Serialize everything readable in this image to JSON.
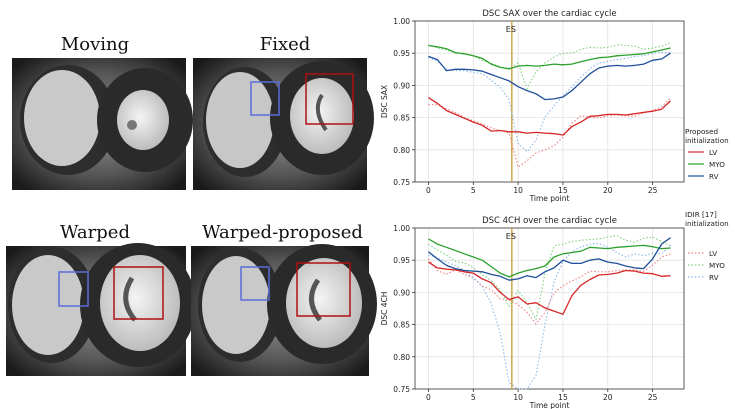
{
  "panels": {
    "moving": "Moving",
    "fixed": "Fixed",
    "warped": "Warped",
    "warped_proposed": "Warped-proposed"
  },
  "legend": {
    "proposed_title_line1": "Proposed",
    "proposed_title_line2": "initialization",
    "idir_title_line1": "IDIR [17]",
    "idir_title_line2": "initialization",
    "entries": [
      "LV",
      "MYO",
      "RV"
    ]
  },
  "colors": {
    "LV": "#d62728",
    "MYO": "#2ca02c",
    "RV": "#1f4e9a",
    "ES": "#c8a040",
    "roi_blue": "#5b6cd6",
    "roi_red": "#b01010"
  },
  "chart_data": [
    {
      "type": "line",
      "title": "DSC SAX over the cardiac cycle",
      "xlabel": "Time point",
      "ylabel": "DSC SAX",
      "xlim": [
        -1.5,
        28.5
      ],
      "ylim": [
        0.75,
        1.0
      ],
      "xticks": [
        0,
        5,
        10,
        15,
        20,
        25
      ],
      "yticks": [
        0.75,
        0.8,
        0.85,
        0.9,
        0.95,
        1.0
      ],
      "grid": true,
      "annotation": {
        "label": "ES",
        "x": 9.3
      },
      "x": [
        0,
        1,
        2,
        3,
        4,
        5,
        6,
        7,
        8,
        9,
        10,
        11,
        12,
        13,
        14,
        15,
        16,
        17,
        18,
        19,
        20,
        21,
        22,
        23,
        24,
        25,
        26,
        27
      ],
      "series": [
        {
          "name": "LV",
          "group": "Proposed initialization",
          "style": "solid",
          "values": [
            0.881,
            0.872,
            0.861,
            0.855,
            0.849,
            0.843,
            0.838,
            0.829,
            0.83,
            0.828,
            0.828,
            0.826,
            0.827,
            0.826,
            0.825,
            0.823,
            0.836,
            0.843,
            0.852,
            0.853,
            0.855,
            0.855,
            0.854,
            0.856,
            0.858,
            0.86,
            0.863,
            0.876
          ]
        },
        {
          "name": "MYO",
          "group": "Proposed initialization",
          "style": "solid",
          "values": [
            0.962,
            0.96,
            0.957,
            0.951,
            0.949,
            0.946,
            0.942,
            0.933,
            0.928,
            0.926,
            0.93,
            0.931,
            0.93,
            0.931,
            0.933,
            0.932,
            0.933,
            0.937,
            0.94,
            0.943,
            0.944,
            0.946,
            0.947,
            0.948,
            0.949,
            0.952,
            0.955,
            0.958
          ]
        },
        {
          "name": "RV",
          "group": "Proposed initialization",
          "style": "solid",
          "values": [
            0.945,
            0.94,
            0.923,
            0.925,
            0.925,
            0.924,
            0.922,
            0.917,
            0.912,
            0.907,
            0.898,
            0.892,
            0.887,
            0.878,
            0.879,
            0.882,
            0.892,
            0.905,
            0.918,
            0.927,
            0.93,
            0.931,
            0.93,
            0.931,
            0.933,
            0.939,
            0.941,
            0.95
          ]
        },
        {
          "name": "LV",
          "group": "IDIR [17] initialization",
          "style": "dotted",
          "values": [
            0.87,
            0.87,
            0.864,
            0.858,
            0.85,
            0.845,
            0.84,
            0.834,
            0.83,
            0.826,
            0.773,
            0.783,
            0.795,
            0.8,
            0.806,
            0.82,
            0.841,
            0.853,
            0.851,
            0.849,
            0.853,
            0.854,
            0.853,
            0.852,
            0.857,
            0.861,
            0.867,
            0.88
          ]
        },
        {
          "name": "MYO",
          "group": "IDIR [17] initialization",
          "style": "dotted",
          "values": [
            0.963,
            0.958,
            0.955,
            0.95,
            0.95,
            0.946,
            0.939,
            0.934,
            0.929,
            0.925,
            0.935,
            0.895,
            0.921,
            0.935,
            0.944,
            0.95,
            0.95,
            0.956,
            0.959,
            0.958,
            0.959,
            0.963,
            0.962,
            0.961,
            0.956,
            0.958,
            0.961,
            0.966
          ]
        },
        {
          "name": "RV",
          "group": "IDIR [17] initialization",
          "style": "dotted",
          "values": [
            0.943,
            0.938,
            0.925,
            0.923,
            0.923,
            0.92,
            0.918,
            0.908,
            0.897,
            0.878,
            0.81,
            0.797,
            0.815,
            0.851,
            0.868,
            0.884,
            0.898,
            0.913,
            0.926,
            0.935,
            0.937,
            0.94,
            0.942,
            0.945,
            0.946,
            0.95,
            0.951,
            0.951
          ]
        }
      ]
    },
    {
      "type": "line",
      "title": "DSC 4CH over the cardiac cycle",
      "xlabel": "Time point",
      "ylabel": "DSC 4CH",
      "xlim": [
        -1.5,
        28.5
      ],
      "ylim": [
        0.75,
        1.0
      ],
      "xticks": [
        0,
        5,
        10,
        15,
        20,
        25
      ],
      "yticks": [
        0.75,
        0.8,
        0.85,
        0.9,
        0.95,
        1.0
      ],
      "grid": true,
      "annotation": {
        "label": "ES",
        "x": 9.3
      },
      "x": [
        0,
        1,
        2,
        3,
        4,
        5,
        6,
        7,
        8,
        9,
        10,
        11,
        12,
        13,
        14,
        15,
        16,
        17,
        18,
        19,
        20,
        21,
        22,
        23,
        24,
        25,
        26,
        27
      ],
      "series": [
        {
          "name": "LV",
          "group": "Proposed initialization",
          "style": "solid",
          "values": [
            0.947,
            0.938,
            0.936,
            0.935,
            0.932,
            0.93,
            0.921,
            0.915,
            0.9,
            0.889,
            0.893,
            0.882,
            0.884,
            0.876,
            0.871,
            0.866,
            0.895,
            0.911,
            0.92,
            0.927,
            0.928,
            0.93,
            0.934,
            0.933,
            0.93,
            0.929,
            0.925,
            0.926
          ]
        },
        {
          "name": "MYO",
          "group": "Proposed initialization",
          "style": "solid",
          "values": [
            0.983,
            0.975,
            0.97,
            0.965,
            0.96,
            0.955,
            0.95,
            0.94,
            0.93,
            0.924,
            0.93,
            0.934,
            0.937,
            0.941,
            0.955,
            0.96,
            0.962,
            0.964,
            0.97,
            0.969,
            0.968,
            0.97,
            0.971,
            0.972,
            0.973,
            0.971,
            0.968,
            0.969
          ]
        },
        {
          "name": "RV",
          "group": "Proposed initialization",
          "style": "solid",
          "values": [
            0.963,
            0.952,
            0.942,
            0.937,
            0.934,
            0.933,
            0.932,
            0.928,
            0.925,
            0.919,
            0.921,
            0.926,
            0.923,
            0.932,
            0.938,
            0.95,
            0.945,
            0.945,
            0.95,
            0.952,
            0.947,
            0.945,
            0.941,
            0.938,
            0.937,
            0.952,
            0.975,
            0.985
          ]
        },
        {
          "name": "LV",
          "group": "IDIR [17] initialization",
          "style": "dotted",
          "values": [
            0.952,
            0.934,
            0.928,
            0.935,
            0.928,
            0.923,
            0.91,
            0.904,
            0.89,
            0.888,
            0.881,
            0.869,
            0.851,
            0.869,
            0.899,
            0.91,
            0.918,
            0.924,
            0.933,
            0.932,
            0.932,
            0.934,
            0.935,
            0.935,
            0.933,
            0.942,
            0.955,
            0.96
          ]
        },
        {
          "name": "MYO",
          "group": "IDIR [17] initialization",
          "style": "dotted",
          "values": [
            0.975,
            0.966,
            0.958,
            0.948,
            0.946,
            0.938,
            0.928,
            0.918,
            0.904,
            0.878,
            0.903,
            0.884,
            0.858,
            0.93,
            0.972,
            0.975,
            0.979,
            0.981,
            0.982,
            0.983,
            0.986,
            0.988,
            0.981,
            0.978,
            0.984,
            0.986,
            0.979,
            0.972
          ]
        },
        {
          "name": "RV",
          "group": "IDIR [17] initialization",
          "style": "dotted",
          "values": [
            0.958,
            0.954,
            0.947,
            0.942,
            0.934,
            0.922,
            0.909,
            0.883,
            0.837,
            0.76,
            0.742,
            0.74,
            0.771,
            0.85,
            0.916,
            0.948,
            0.963,
            0.971,
            0.975,
            0.976,
            0.97,
            0.962,
            0.955,
            0.96,
            0.957,
            0.961,
            0.96,
            0.973
          ]
        }
      ]
    }
  ]
}
